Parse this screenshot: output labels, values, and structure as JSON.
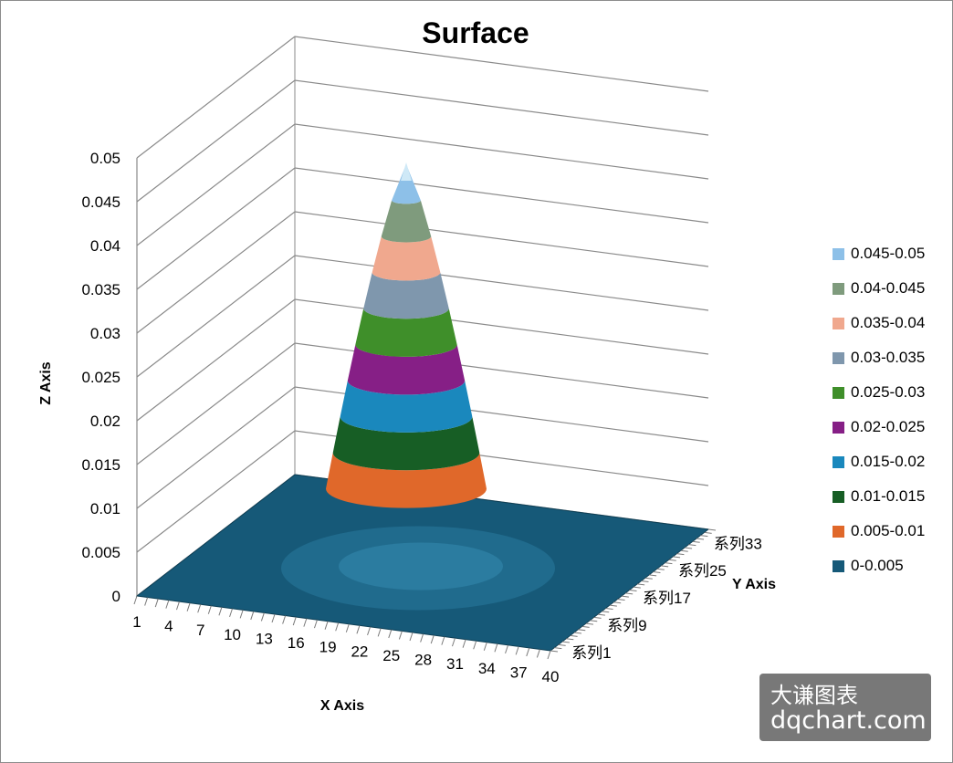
{
  "chart_data": {
    "type": "surface",
    "title": "Surface",
    "xlabel": "X Axis",
    "ylabel": "Y Axis",
    "zlabel": "Z Axis",
    "zlim": [
      0,
      0.05
    ],
    "z_ticks": [
      "0",
      "0.005",
      "0.01",
      "0.015",
      "0.02",
      "0.025",
      "0.03",
      "0.035",
      "0.04",
      "0.045",
      "0.05"
    ],
    "x_ticks": [
      "1",
      "4",
      "7",
      "10",
      "13",
      "16",
      "19",
      "22",
      "25",
      "28",
      "31",
      "34",
      "37",
      "40"
    ],
    "y_ticks": [
      "系列1",
      "系列9",
      "系列17",
      "系列25",
      "系列33"
    ],
    "grid": true,
    "legend_position": "right",
    "peak": {
      "x": 20,
      "y": 20,
      "z": 0.05
    },
    "legend": [
      {
        "label": "0.045-0.05",
        "color": "#8dc0e8"
      },
      {
        "label": "0.04-0.045",
        "color": "#7f9b7d"
      },
      {
        "label": "0.035-0.04",
        "color": "#f0a88e"
      },
      {
        "label": "0.03-0.035",
        "color": "#7f97ad"
      },
      {
        "label": "0.025-0.03",
        "color": "#3f8f2a"
      },
      {
        "label": "0.02-0.025",
        "color": "#861f86"
      },
      {
        "label": "0.015-0.02",
        "color": "#1a88bd"
      },
      {
        "label": "0.01-0.015",
        "color": "#175e25"
      },
      {
        "label": "0.005-0.01",
        "color": "#e0682a"
      },
      {
        "label": "0-0.005",
        "color": "#165978"
      }
    ]
  },
  "watermark": {
    "line1": "大谦图表",
    "line2": "dqchart.com"
  }
}
